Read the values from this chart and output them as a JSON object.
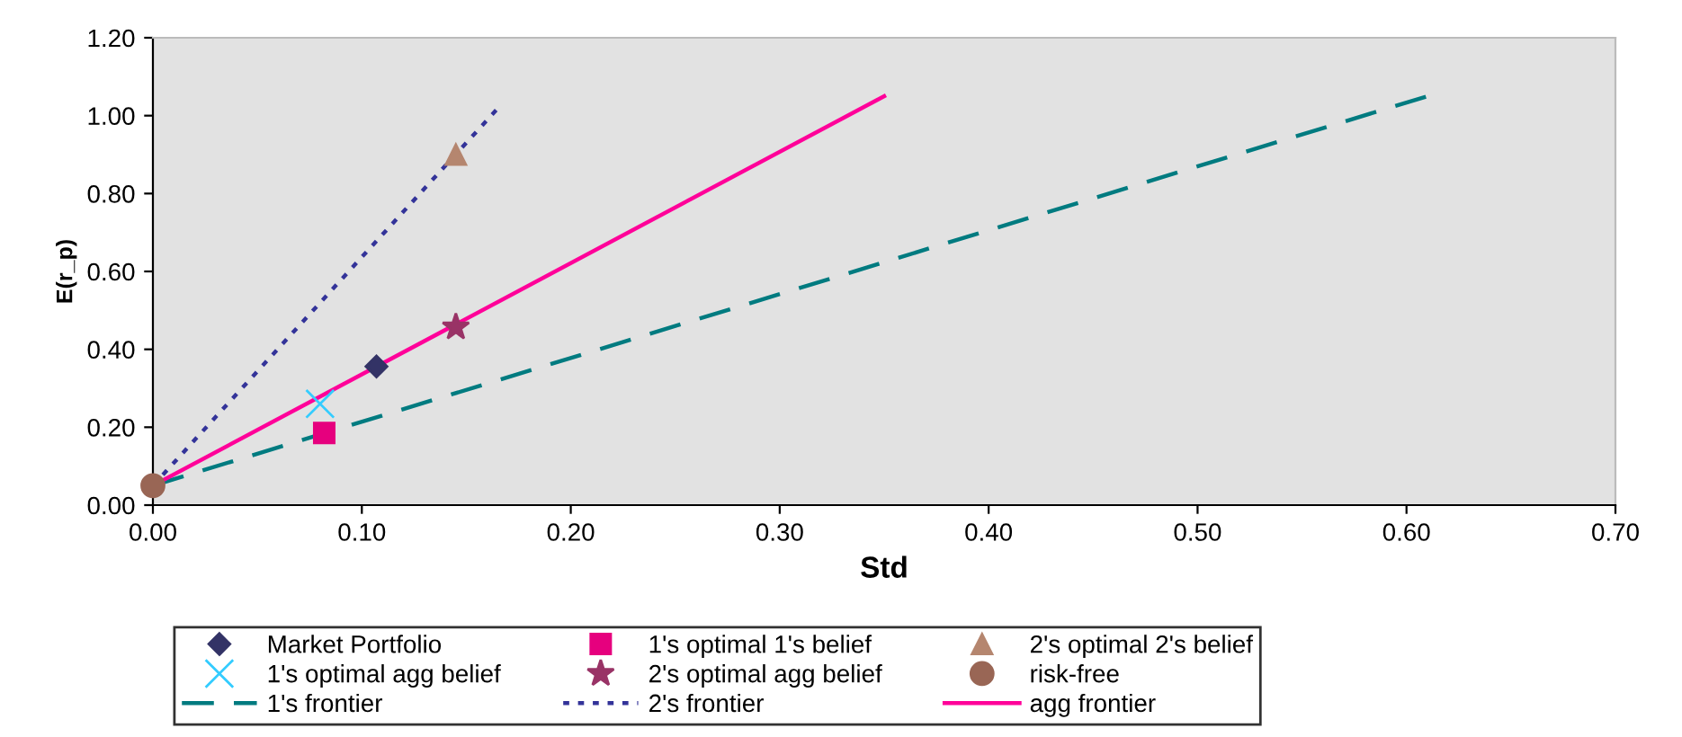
{
  "chart_data": {
    "type": "scatter",
    "xlabel": "Std",
    "ylabel": "E(r_p)",
    "xlim": [
      0,
      0.7
    ],
    "xticks": [
      {
        "value": 0,
        "label": "0.00"
      },
      {
        "value": 0.1,
        "label": "0.10"
      },
      {
        "value": 0.2,
        "label": "0.20"
      },
      {
        "value": 0.3,
        "label": "0.30"
      },
      {
        "value": 0.4,
        "label": "0.40"
      },
      {
        "value": 0.5,
        "label": "0.50"
      },
      {
        "value": 0.6,
        "label": "0.60"
      },
      {
        "value": 0.7,
        "label": "0.70"
      }
    ],
    "ylim": [
      0,
      1.2
    ],
    "yticks": [
      {
        "value": 0,
        "label": "0.00"
      },
      {
        "value": 0.2,
        "label": "0.20"
      },
      {
        "value": 0.4,
        "label": "0.40"
      },
      {
        "value": 0.6,
        "label": "0.60"
      },
      {
        "value": 0.8,
        "label": "0.80"
      },
      {
        "value": 1.0,
        "label": "1.00"
      },
      {
        "value": 1.2,
        "label": "1.20"
      }
    ],
    "grid": false,
    "legend": "bottom",
    "series": [
      {
        "name": "Market Portfolio",
        "marker": "diamond",
        "color": "#333366",
        "x": [
          0.107
        ],
        "values": [
          0.356
        ]
      },
      {
        "name": "1's optimal agg belief",
        "marker": "cross",
        "color": "#33ccff",
        "x": [
          0.08
        ],
        "values": [
          0.26
        ]
      },
      {
        "name": "1's frontier",
        "type": "line",
        "line_style": "dashed",
        "color": "#007b80",
        "x": [
          0,
          0.61
        ],
        "values": [
          0.05,
          1.05
        ]
      },
      {
        "name": "1's optimal 1's belief",
        "marker": "square",
        "color": "#e6007e",
        "x": [
          0.082
        ],
        "values": [
          0.185
        ]
      },
      {
        "name": "2's optimal agg belief",
        "marker": "star",
        "color": "#993366",
        "x": [
          0.145
        ],
        "values": [
          0.457
        ]
      },
      {
        "name": "2's frontier",
        "type": "line",
        "line_style": "dotted",
        "color": "#333399",
        "x": [
          0,
          0.167
        ],
        "values": [
          0.05,
          1.03
        ]
      },
      {
        "name": "2's optimal 2's belief",
        "marker": "triangle",
        "color": "#b5866f",
        "x": [
          0.145
        ],
        "values": [
          0.9
        ]
      },
      {
        "name": "risk-free",
        "marker": "circle",
        "color": "#996655",
        "x": [
          0
        ],
        "values": [
          0.05
        ]
      },
      {
        "name": "agg frontier",
        "type": "line",
        "line_style": "solid",
        "color": "#ff0099",
        "x": [
          0,
          0.35
        ],
        "values": [
          0.05,
          1.05
        ]
      }
    ]
  }
}
